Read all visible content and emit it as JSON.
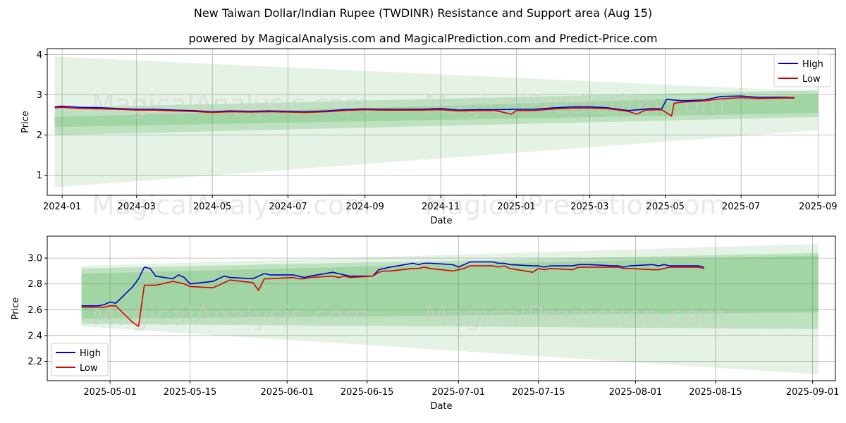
{
  "title": "New Taiwan Dollar/Indian Rupee (TWDINR) Resistance and Support area (Aug 15)",
  "subtitle": "powered by MagicalAnalysis.com and MagicalPrediction.com and Predict-Price.com",
  "watermarks": [
    "MagicalAnalysis.com",
    "MagicalPrediction.com"
  ],
  "colors": {
    "high": "#0000cc",
    "low": "#dd0000",
    "band": "#4caf50",
    "grid": "#b0b0b0"
  },
  "chart_data": [
    {
      "type": "line",
      "xlabel": "Date",
      "ylabel": "Price",
      "xlim": [
        "2023-12-20",
        "2025-09-15"
      ],
      "ylim": [
        0.5,
        4.15
      ],
      "x_ticks": [
        "2024-01-01",
        "2024-03-01",
        "2024-05-01",
        "2024-07-01",
        "2024-09-01",
        "2024-11-01",
        "2025-01-01",
        "2025-03-01",
        "2025-05-01",
        "2025-07-01",
        "2025-09-01"
      ],
      "x_tick_labels": [
        "2024-01",
        "2024-03",
        "2024-05",
        "2024-07",
        "2024-09",
        "2024-11",
        "2025-01",
        "2025-03",
        "2025-05",
        "2025-07",
        "2025-09"
      ],
      "y_ticks": [
        1,
        2,
        3,
        4
      ],
      "grid": true,
      "legend": "top-right",
      "bands": [
        {
          "x": [
            "2023-12-26",
            "2025-09-01"
          ],
          "upper": [
            3.95,
            3.08
          ],
          "lower": [
            0.7,
            2.12
          ],
          "opacity": 0.15
        },
        {
          "x": [
            "2023-12-26",
            "2025-09-01"
          ],
          "upper": [
            2.68,
            3.12
          ],
          "lower": [
            2.0,
            2.45
          ],
          "opacity": 0.25
        },
        {
          "x": [
            "2023-12-26",
            "2025-09-01"
          ],
          "upper": [
            2.45,
            3.0
          ],
          "lower": [
            2.2,
            2.55
          ],
          "opacity": 0.25
        }
      ],
      "series": [
        {
          "name": "High",
          "x": [
            "2023-12-26",
            "2024-01-01",
            "2024-01-15",
            "2024-02-01",
            "2024-02-15",
            "2024-03-01",
            "2024-03-15",
            "2024-04-01",
            "2024-04-15",
            "2024-05-01",
            "2024-05-15",
            "2024-06-01",
            "2024-06-15",
            "2024-07-01",
            "2024-07-15",
            "2024-08-01",
            "2024-08-15",
            "2024-09-01",
            "2024-09-15",
            "2024-10-01",
            "2024-10-15",
            "2024-11-01",
            "2024-11-15",
            "2024-12-01",
            "2024-12-15",
            "2025-01-01",
            "2025-01-15",
            "2025-02-01",
            "2025-02-15",
            "2025-03-01",
            "2025-03-15",
            "2025-04-01",
            "2025-04-10",
            "2025-04-20",
            "2025-04-28",
            "2025-05-02",
            "2025-05-15",
            "2025-06-01",
            "2025-06-15",
            "2025-07-01",
            "2025-07-15",
            "2025-08-01",
            "2025-08-13"
          ],
          "values": [
            2.7,
            2.72,
            2.69,
            2.68,
            2.66,
            2.64,
            2.64,
            2.62,
            2.61,
            2.58,
            2.6,
            2.59,
            2.6,
            2.59,
            2.58,
            2.6,
            2.63,
            2.65,
            2.64,
            2.64,
            2.64,
            2.66,
            2.62,
            2.63,
            2.63,
            2.64,
            2.64,
            2.68,
            2.7,
            2.7,
            2.68,
            2.61,
            2.63,
            2.66,
            2.65,
            2.89,
            2.85,
            2.87,
            2.96,
            2.97,
            2.94,
            2.94,
            2.93
          ]
        },
        {
          "name": "Low",
          "x": [
            "2023-12-26",
            "2024-01-01",
            "2024-01-15",
            "2024-02-01",
            "2024-02-15",
            "2024-03-01",
            "2024-03-15",
            "2024-04-01",
            "2024-04-15",
            "2024-05-01",
            "2024-05-15",
            "2024-06-01",
            "2024-06-15",
            "2024-07-01",
            "2024-07-15",
            "2024-08-01",
            "2024-08-15",
            "2024-09-01",
            "2024-09-15",
            "2024-10-01",
            "2024-10-15",
            "2024-11-01",
            "2024-11-15",
            "2024-12-01",
            "2024-12-15",
            "2024-12-28",
            "2025-01-01",
            "2025-01-15",
            "2025-02-01",
            "2025-02-15",
            "2025-03-01",
            "2025-03-15",
            "2025-04-01",
            "2025-04-08",
            "2025-04-15",
            "2025-04-28",
            "2025-05-06",
            "2025-05-08",
            "2025-05-15",
            "2025-06-01",
            "2025-06-15",
            "2025-07-01",
            "2025-07-15",
            "2025-08-01",
            "2025-08-13"
          ],
          "values": [
            2.68,
            2.69,
            2.66,
            2.65,
            2.64,
            2.62,
            2.62,
            2.6,
            2.59,
            2.56,
            2.58,
            2.57,
            2.58,
            2.57,
            2.56,
            2.58,
            2.61,
            2.63,
            2.62,
            2.62,
            2.62,
            2.63,
            2.6,
            2.61,
            2.61,
            2.52,
            2.61,
            2.61,
            2.65,
            2.67,
            2.67,
            2.66,
            2.59,
            2.52,
            2.62,
            2.63,
            2.47,
            2.79,
            2.82,
            2.85,
            2.9,
            2.93,
            2.91,
            2.92,
            2.92
          ]
        }
      ]
    },
    {
      "type": "line",
      "xlabel": "Date",
      "ylabel": "Price",
      "xlim": [
        "2025-04-20",
        "2025-09-05"
      ],
      "ylim": [
        2.05,
        3.17
      ],
      "x_ticks": [
        "2025-05-01",
        "2025-05-15",
        "2025-06-01",
        "2025-06-15",
        "2025-07-01",
        "2025-07-15",
        "2025-08-01",
        "2025-08-15",
        "2025-09-01"
      ],
      "x_tick_labels": [
        "2025-05-01",
        "2025-05-15",
        "2025-06-01",
        "2025-06-15",
        "2025-07-01",
        "2025-07-15",
        "2025-08-01",
        "2025-08-15",
        "2025-09-01"
      ],
      "y_ticks": [
        2.2,
        2.4,
        2.6,
        2.8,
        3.0
      ],
      "grid": true,
      "legend": "bottom-left",
      "bands": [
        {
          "x": [
            "2025-04-26",
            "2025-09-02"
          ],
          "upper": [
            2.94,
            3.11
          ],
          "lower": [
            2.47,
            2.1
          ],
          "opacity": 0.15
        },
        {
          "x": [
            "2025-04-26",
            "2025-09-02"
          ],
          "upper": [
            2.92,
            3.04
          ],
          "lower": [
            2.49,
            2.45
          ],
          "opacity": 0.25
        },
        {
          "x": [
            "2025-04-26",
            "2025-09-02"
          ],
          "upper": [
            2.88,
            3.02
          ],
          "lower": [
            2.53,
            2.58
          ],
          "opacity": 0.25
        }
      ],
      "series": [
        {
          "name": "High",
          "x": [
            "2025-04-26",
            "2025-04-29",
            "2025-04-30",
            "2025-05-01",
            "2025-05-02",
            "2025-05-05",
            "2025-05-06",
            "2025-05-07",
            "2025-05-08",
            "2025-05-09",
            "2025-05-12",
            "2025-05-13",
            "2025-05-14",
            "2025-05-15",
            "2025-05-19",
            "2025-05-20",
            "2025-05-21",
            "2025-05-22",
            "2025-05-26",
            "2025-05-27",
            "2025-05-28",
            "2025-05-29",
            "2025-06-02",
            "2025-06-03",
            "2025-06-04",
            "2025-06-05",
            "2025-06-09",
            "2025-06-10",
            "2025-06-11",
            "2025-06-12",
            "2025-06-16",
            "2025-06-17",
            "2025-06-18",
            "2025-06-19",
            "2025-06-23",
            "2025-06-24",
            "2025-06-25",
            "2025-06-26",
            "2025-06-30",
            "2025-07-01",
            "2025-07-02",
            "2025-07-03",
            "2025-07-07",
            "2025-07-08",
            "2025-07-09",
            "2025-07-10",
            "2025-07-14",
            "2025-07-15",
            "2025-07-16",
            "2025-07-17",
            "2025-07-21",
            "2025-07-22",
            "2025-07-23",
            "2025-07-24",
            "2025-07-28",
            "2025-07-29",
            "2025-07-30",
            "2025-07-31",
            "2025-08-04",
            "2025-08-05",
            "2025-08-06",
            "2025-08-07",
            "2025-08-11",
            "2025-08-12",
            "2025-08-13"
          ],
          "values": [
            2.63,
            2.63,
            2.64,
            2.66,
            2.65,
            2.78,
            2.84,
            2.93,
            2.92,
            2.86,
            2.84,
            2.87,
            2.85,
            2.8,
            2.82,
            2.84,
            2.86,
            2.85,
            2.84,
            2.86,
            2.88,
            2.87,
            2.87,
            2.86,
            2.85,
            2.86,
            2.89,
            2.88,
            2.87,
            2.86,
            2.86,
            2.91,
            2.92,
            2.93,
            2.96,
            2.95,
            2.96,
            2.96,
            2.95,
            2.93,
            2.95,
            2.97,
            2.97,
            2.96,
            2.96,
            2.95,
            2.94,
            2.94,
            2.93,
            2.94,
            2.94,
            2.95,
            2.95,
            2.95,
            2.94,
            2.94,
            2.93,
            2.94,
            2.95,
            2.94,
            2.95,
            2.94,
            2.94,
            2.94,
            2.93
          ]
        },
        {
          "name": "Low",
          "x": [
            "2025-04-26",
            "2025-04-29",
            "2025-04-30",
            "2025-05-01",
            "2025-05-02",
            "2025-05-05",
            "2025-05-06",
            "2025-05-07",
            "2025-05-08",
            "2025-05-09",
            "2025-05-12",
            "2025-05-13",
            "2025-05-14",
            "2025-05-15",
            "2025-05-19",
            "2025-05-20",
            "2025-05-21",
            "2025-05-22",
            "2025-05-26",
            "2025-05-27",
            "2025-05-28",
            "2025-05-29",
            "2025-06-02",
            "2025-06-03",
            "2025-06-04",
            "2025-06-05",
            "2025-06-09",
            "2025-06-10",
            "2025-06-11",
            "2025-06-12",
            "2025-06-16",
            "2025-06-17",
            "2025-06-18",
            "2025-06-19",
            "2025-06-23",
            "2025-06-24",
            "2025-06-25",
            "2025-06-26",
            "2025-06-30",
            "2025-07-01",
            "2025-07-02",
            "2025-07-03",
            "2025-07-07",
            "2025-07-08",
            "2025-07-09",
            "2025-07-10",
            "2025-07-14",
            "2025-07-15",
            "2025-07-16",
            "2025-07-17",
            "2025-07-21",
            "2025-07-22",
            "2025-07-23",
            "2025-07-24",
            "2025-07-28",
            "2025-07-29",
            "2025-07-30",
            "2025-07-31",
            "2025-08-04",
            "2025-08-05",
            "2025-08-06",
            "2025-08-07",
            "2025-08-11",
            "2025-08-12",
            "2025-08-13"
          ],
          "values": [
            2.62,
            2.62,
            2.62,
            2.63,
            2.63,
            2.5,
            2.47,
            2.79,
            2.79,
            2.79,
            2.82,
            2.81,
            2.8,
            2.78,
            2.77,
            2.79,
            2.81,
            2.83,
            2.81,
            2.75,
            2.84,
            2.84,
            2.85,
            2.84,
            2.84,
            2.85,
            2.86,
            2.85,
            2.86,
            2.85,
            2.86,
            2.89,
            2.9,
            2.9,
            2.92,
            2.92,
            2.93,
            2.92,
            2.9,
            2.91,
            2.92,
            2.94,
            2.94,
            2.93,
            2.94,
            2.92,
            2.89,
            2.92,
            2.91,
            2.92,
            2.91,
            2.93,
            2.93,
            2.93,
            2.93,
            2.93,
            2.92,
            2.92,
            2.91,
            2.91,
            2.92,
            2.93,
            2.93,
            2.93,
            2.92
          ]
        }
      ]
    }
  ]
}
